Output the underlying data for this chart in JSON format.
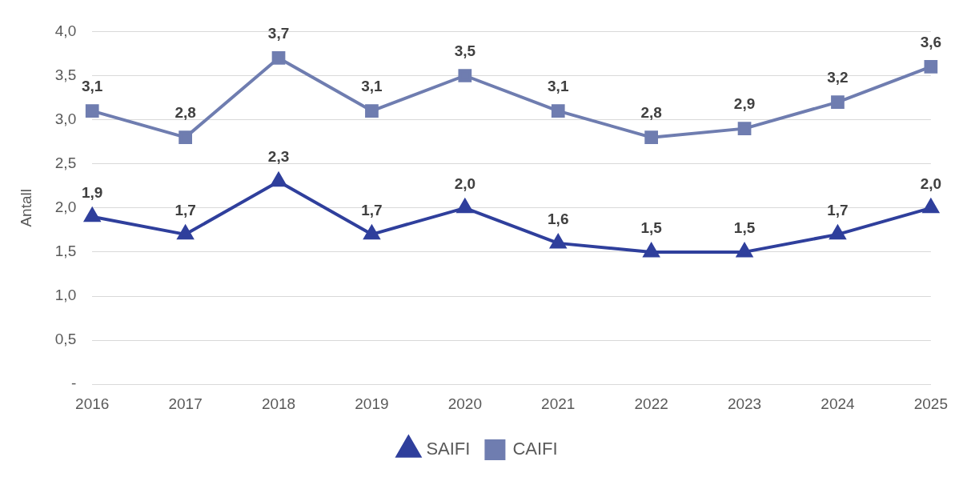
{
  "chart_data": {
    "type": "line",
    "ylabel": "Antall",
    "categories": [
      "2016",
      "2017",
      "2018",
      "2019",
      "2020",
      "2021",
      "2022",
      "2023",
      "2024",
      "2025"
    ],
    "series": [
      {
        "name": "SAIFI",
        "color": "#2f3f9c",
        "marker": "triangle",
        "values": [
          1.9,
          1.7,
          2.3,
          1.7,
          2.0,
          1.6,
          1.5,
          1.5,
          1.7,
          2.0
        ],
        "value_labels": [
          "1,9",
          "1,7",
          "2,3",
          "1,7",
          "2,0",
          "1,6",
          "1,5",
          "1,5",
          "1,7",
          "2,0"
        ]
      },
      {
        "name": "CAIFI",
        "color": "#6f7db0",
        "marker": "square",
        "values": [
          3.1,
          2.8,
          3.7,
          3.1,
          3.5,
          3.1,
          2.8,
          2.9,
          3.2,
          3.6
        ],
        "value_labels": [
          "3,1",
          "2,8",
          "3,7",
          "3,1",
          "3,5",
          "3,1",
          "2,8",
          "2,9",
          "3,2",
          "3,6"
        ]
      }
    ],
    "ylim": [
      0,
      4
    ],
    "yticks": [
      {
        "value": 0,
        "label": "-"
      },
      {
        "value": 0.5,
        "label": "0,5"
      },
      {
        "value": 1,
        "label": "1,0"
      },
      {
        "value": 1.5,
        "label": "1,5"
      },
      {
        "value": 2,
        "label": "2,0"
      },
      {
        "value": 2.5,
        "label": "2,5"
      },
      {
        "value": 3,
        "label": "3,0"
      },
      {
        "value": 3.5,
        "label": "3,5"
      },
      {
        "value": 4,
        "label": "4,0"
      }
    ],
    "grid": "y",
    "legend": "bottom",
    "line_style": "solid"
  }
}
